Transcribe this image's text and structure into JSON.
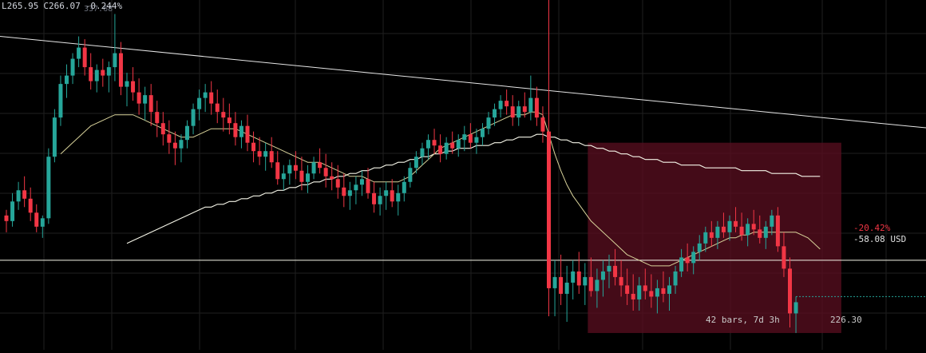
{
  "ohlc_bar": {
    "low": "L265.95",
    "close": "C266.07",
    "change": "-0.244%"
  },
  "ghost_high_label": "337.68",
  "measure": {
    "percent": "-20.42%",
    "amount": "-58.08 USD",
    "bars": "42 bars, 7d 3h",
    "price": "226.30"
  },
  "colors": {
    "background": "#000000",
    "grid": "#1f1f1f",
    "up_candle": "#26a69a",
    "down_candle": "#f23645",
    "ma_fast": "#d8d29a",
    "ma_slow": "#f5f5e8",
    "trendline": "#e6e6e6",
    "measure_fill": "#5b0f20",
    "current_price_line": "#26a69a"
  },
  "chart_data": {
    "type": "candlestick",
    "title": "",
    "ylim": [
      220,
      345
    ],
    "grid": true,
    "candles": [
      [
        268,
        270,
        262,
        266
      ],
      [
        266,
        276,
        264,
        273
      ],
      [
        273,
        280,
        270,
        277
      ],
      [
        277,
        282,
        271,
        274
      ],
      [
        274,
        278,
        266,
        269
      ],
      [
        269,
        272,
        262,
        264
      ],
      [
        264,
        268,
        260,
        267
      ],
      [
        267,
        292,
        265,
        289
      ],
      [
        289,
        306,
        287,
        303
      ],
      [
        303,
        318,
        300,
        315
      ],
      [
        315,
        322,
        310,
        318
      ],
      [
        318,
        326,
        315,
        324
      ],
      [
        324,
        332,
        321,
        328
      ],
      [
        328,
        331,
        318,
        321
      ],
      [
        321,
        326,
        313,
        316
      ],
      [
        316,
        322,
        312,
        320
      ],
      [
        320,
        324,
        314,
        318
      ],
      [
        318,
        323,
        312,
        321
      ],
      [
        321,
        340,
        316,
        326
      ],
      [
        326,
        330,
        311,
        314
      ],
      [
        314,
        319,
        307,
        316
      ],
      [
        316,
        321,
        309,
        312
      ],
      [
        312,
        317,
        304,
        308
      ],
      [
        308,
        314,
        302,
        311
      ],
      [
        311,
        315,
        300,
        305
      ],
      [
        305,
        309,
        296,
        301
      ],
      [
        301,
        305,
        293,
        297
      ],
      [
        297,
        302,
        290,
        294
      ],
      [
        294,
        298,
        286,
        292
      ],
      [
        292,
        297,
        287,
        295
      ],
      [
        295,
        302,
        292,
        300
      ],
      [
        300,
        308,
        297,
        306
      ],
      [
        306,
        313,
        302,
        310
      ],
      [
        310,
        315,
        305,
        312
      ],
      [
        312,
        316,
        304,
        308
      ],
      [
        308,
        313,
        301,
        305
      ],
      [
        305,
        310,
        298,
        303
      ],
      [
        303,
        308,
        297,
        301
      ],
      [
        301,
        305,
        293,
        296
      ],
      [
        296,
        302,
        292,
        300
      ],
      [
        300,
        304,
        291,
        294
      ],
      [
        294,
        298,
        287,
        291
      ],
      [
        291,
        296,
        286,
        289
      ],
      [
        289,
        294,
        284,
        291
      ],
      [
        291,
        296,
        285,
        287
      ],
      [
        287,
        291,
        279,
        281
      ],
      [
        281,
        286,
        277,
        283
      ],
      [
        283,
        288,
        279,
        286
      ],
      [
        286,
        291,
        281,
        284
      ],
      [
        284,
        289,
        277,
        280
      ],
      [
        280,
        286,
        276,
        283
      ],
      [
        283,
        289,
        281,
        287
      ],
      [
        287,
        292,
        283,
        285
      ],
      [
        285,
        290,
        278,
        282
      ],
      [
        282,
        287,
        277,
        281
      ],
      [
        281,
        286,
        274,
        278
      ],
      [
        278,
        283,
        271,
        275
      ],
      [
        275,
        280,
        270,
        277
      ],
      [
        277,
        282,
        272,
        279
      ],
      [
        279,
        284,
        275,
        281
      ],
      [
        281,
        285,
        274,
        276
      ],
      [
        276,
        280,
        269,
        272
      ],
      [
        272,
        278,
        268,
        275
      ],
      [
        275,
        280,
        270,
        277
      ],
      [
        277,
        281,
        271,
        273
      ],
      [
        273,
        279,
        268,
        276
      ],
      [
        276,
        282,
        273,
        280
      ],
      [
        280,
        287,
        278,
        285
      ],
      [
        285,
        291,
        283,
        289
      ],
      [
        289,
        294,
        286,
        292
      ],
      [
        292,
        297,
        288,
        295
      ],
      [
        295,
        299,
        290,
        293
      ],
      [
        293,
        297,
        287,
        290
      ],
      [
        290,
        296,
        288,
        294
      ],
      [
        294,
        298,
        290,
        292
      ],
      [
        292,
        297,
        289,
        295
      ],
      [
        295,
        300,
        291,
        297
      ],
      [
        297,
        301,
        292,
        294
      ],
      [
        294,
        299,
        290,
        296
      ],
      [
        296,
        301,
        293,
        299
      ],
      [
        299,
        305,
        297,
        303
      ],
      [
        303,
        308,
        300,
        306
      ],
      [
        306,
        311,
        303,
        309
      ],
      [
        309,
        313,
        304,
        307
      ],
      [
        307,
        311,
        300,
        303
      ],
      [
        303,
        309,
        300,
        307
      ],
      [
        307,
        312,
        303,
        305
      ],
      [
        305,
        318,
        302,
        310
      ],
      [
        310,
        314,
        300,
        303
      ],
      [
        303,
        307,
        294,
        298
      ],
      [
        298,
        348,
        232,
        242
      ],
      [
        242,
        252,
        232,
        246
      ],
      [
        246,
        254,
        236,
        240
      ],
      [
        240,
        250,
        230,
        244
      ],
      [
        244,
        252,
        238,
        248
      ],
      [
        248,
        255,
        240,
        243
      ],
      [
        243,
        251,
        236,
        246
      ],
      [
        246,
        253,
        239,
        241
      ],
      [
        241,
        249,
        235,
        245
      ],
      [
        245,
        252,
        239,
        248
      ],
      [
        248,
        254,
        242,
        250
      ],
      [
        250,
        256,
        243,
        246
      ],
      [
        246,
        252,
        239,
        243
      ],
      [
        243,
        249,
        236,
        240
      ],
      [
        240,
        247,
        234,
        238
      ],
      [
        238,
        246,
        234,
        243
      ],
      [
        243,
        249,
        238,
        241
      ],
      [
        241,
        247,
        235,
        239
      ],
      [
        239,
        245,
        233,
        242
      ],
      [
        242,
        248,
        237,
        240
      ],
      [
        240,
        246,
        234,
        243
      ],
      [
        243,
        250,
        240,
        248
      ],
      [
        248,
        256,
        246,
        253
      ],
      [
        253,
        258,
        248,
        251
      ],
      [
        251,
        257,
        247,
        255
      ],
      [
        255,
        261,
        252,
        258
      ],
      [
        258,
        264,
        255,
        262
      ],
      [
        262,
        266,
        257,
        260
      ],
      [
        260,
        266,
        256,
        264
      ],
      [
        264,
        269,
        260,
        262
      ],
      [
        262,
        268,
        259,
        266
      ],
      [
        266,
        271,
        262,
        264
      ],
      [
        264,
        269,
        259,
        261
      ],
      [
        261,
        267,
        257,
        265
      ],
      [
        265,
        270,
        261,
        263
      ],
      [
        263,
        268,
        258,
        260
      ],
      [
        260,
        266,
        256,
        264
      ],
      [
        264,
        270,
        261,
        268
      ],
      [
        268,
        271,
        255,
        257
      ],
      [
        257,
        262,
        246,
        249
      ],
      [
        249,
        253,
        228,
        233
      ],
      [
        233,
        239,
        226,
        237
      ]
    ],
    "ma_fast": [
      null,
      null,
      null,
      null,
      null,
      null,
      null,
      null,
      null,
      290,
      292,
      294,
      296,
      298,
      300,
      301,
      302,
      303,
      304,
      304,
      304,
      304,
      303,
      302,
      301,
      300,
      299,
      298,
      297,
      296,
      296,
      296,
      297,
      298,
      299,
      299,
      299,
      299,
      299,
      298,
      297,
      296,
      295,
      294,
      293,
      292,
      291,
      290,
      289,
      288,
      287,
      287,
      287,
      286,
      285,
      284,
      283,
      282,
      282,
      282,
      281,
      280,
      280,
      280,
      280,
      280,
      281,
      282,
      284,
      286,
      288,
      290,
      292,
      293,
      294,
      295,
      296,
      297,
      298,
      299,
      300,
      301,
      302,
      303,
      304,
      304,
      304,
      305,
      305,
      304,
      297,
      290,
      284,
      279,
      275,
      272,
      269,
      266,
      264,
      262,
      260,
      258,
      256,
      254,
      253,
      252,
      251,
      250,
      250,
      250,
      250,
      251,
      252,
      253,
      254,
      255,
      256,
      257,
      258,
      259,
      260,
      260,
      261,
      261,
      262,
      262,
      262,
      262,
      262,
      262,
      262,
      262,
      261,
      260,
      258,
      256
    ],
    "ma_slow": [
      null,
      null,
      null,
      null,
      null,
      null,
      null,
      null,
      null,
      null,
      null,
      null,
      null,
      null,
      null,
      null,
      null,
      null,
      null,
      null,
      258,
      259,
      260,
      261,
      262,
      263,
      264,
      265,
      266,
      267,
      268,
      269,
      270,
      271,
      271,
      272,
      272,
      273,
      273,
      274,
      274,
      275,
      275,
      276,
      276,
      277,
      277,
      278,
      278,
      279,
      279,
      280,
      280,
      281,
      281,
      282,
      282,
      283,
      283,
      284,
      284,
      285,
      285,
      286,
      286,
      287,
      287,
      288,
      288,
      289,
      289,
      290,
      290,
      291,
      291,
      292,
      292,
      292,
      293,
      293,
      293,
      294,
      294,
      295,
      295,
      296,
      296,
      296,
      297,
      297,
      296,
      296,
      295,
      295,
      294,
      294,
      293,
      293,
      292,
      292,
      291,
      291,
      290,
      290,
      289,
      289,
      288,
      288,
      288,
      287,
      287,
      287,
      286,
      286,
      286,
      286,
      285,
      285,
      285,
      285,
      285,
      285,
      284,
      284,
      284,
      284,
      284,
      283,
      283,
      283,
      283,
      283,
      282,
      282,
      282,
      282
    ],
    "trendline": {
      "start_index": -1,
      "start_price": 332,
      "end_index": 140,
      "end_price": 302
    },
    "support_price": 252,
    "current_price": 239,
    "measure_range": {
      "from_index": 97,
      "to_index": 138,
      "high_price": 294,
      "low_price": 226
    }
  }
}
